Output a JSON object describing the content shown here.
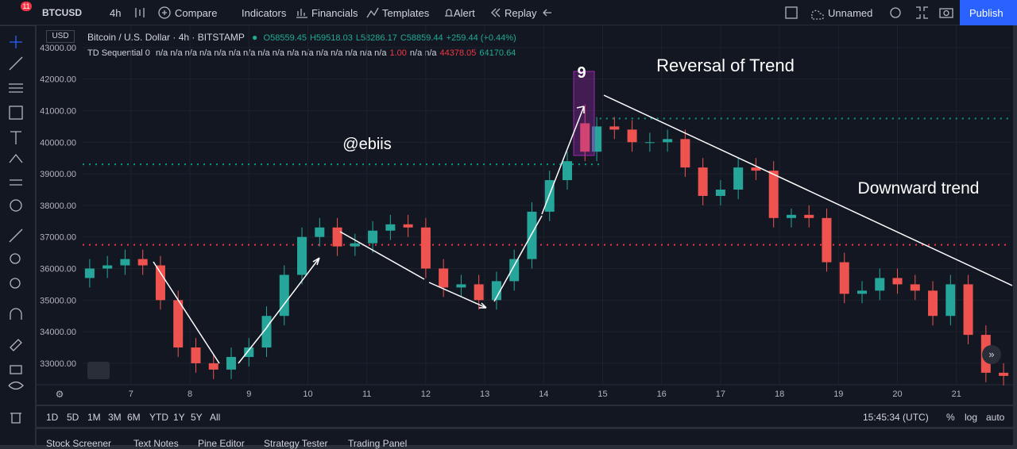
{
  "toolbar": {
    "badge": "11",
    "symbol": "BTCUSD",
    "interval": "4h",
    "items": [
      "Compare",
      "Indicators",
      "Financials",
      "Templates",
      "Alert",
      "Replay"
    ],
    "layout": "Unnamed",
    "publish": "Publish"
  },
  "legend": {
    "currency": "USD",
    "title": "Bitcoin / U.S. Dollar · 4h · BITSTAMP",
    "ohlc": [
      "O58559.45",
      "H59518.03",
      "L58286.17",
      "C58859.44",
      "+259.44 (+0.44%)"
    ],
    "indicator": "TD Sequential 0",
    "indicator_parts": [
      {
        "text": "n/a n/a n/a n/a n/a n/a n/a n/a n/a n/a n/a n/a n/a n/a n/a n/a",
        "color": "#d1d4dc"
      },
      {
        "text": "1.00",
        "color": "#f23645"
      },
      {
        "text": "n/a n/a",
        "color": "#d1d4dc"
      },
      {
        "text": "44378.05",
        "color": "#f23645"
      },
      {
        "text": "64170.64",
        "color": "#22ab94"
      }
    ]
  },
  "chart_data": {
    "type": "candlestick",
    "up_color": "#26a69a",
    "down_color": "#ef5350",
    "x": [
      6.3,
      6.6,
      6.9,
      7.2,
      7.5,
      7.8,
      8.1,
      8.4,
      8.7,
      9.0,
      9.3,
      9.6,
      9.9,
      10.2,
      10.5,
      10.8,
      11.1,
      11.4,
      11.7,
      12.0,
      12.3,
      12.6,
      12.9,
      13.2,
      13.5,
      13.8,
      14.1,
      14.4,
      14.7,
      14.9,
      15.2,
      15.5,
      15.8,
      16.1,
      16.4,
      16.7,
      17.0,
      17.3,
      17.6,
      17.9,
      18.2,
      18.5,
      18.8,
      19.1,
      19.4,
      19.7,
      20.0,
      20.3,
      20.6,
      20.9,
      21.2,
      21.5,
      21.8
    ],
    "open": [
      35700,
      36000,
      36100,
      36300,
      36100,
      35000,
      33500,
      33000,
      32800,
      33200,
      33500,
      34500,
      35800,
      37000,
      37300,
      36700,
      36800,
      37200,
      37400,
      37300,
      36000,
      35400,
      35500,
      35000,
      35600,
      36300,
      37800,
      38800,
      40600,
      39700,
      40500,
      40400,
      40000,
      40000,
      40100,
      39200,
      38300,
      38500,
      39200,
      39100,
      37600,
      37700,
      37600,
      36200,
      35200,
      35300,
      35700,
      35500,
      35300,
      34500,
      35500,
      33900,
      32700
    ],
    "high": [
      36300,
      36400,
      36600,
      36600,
      36400,
      35300,
      33800,
      33300,
      33500,
      33800,
      34800,
      36100,
      37300,
      37600,
      37600,
      37100,
      37500,
      37700,
      37700,
      37600,
      36300,
      35800,
      35800,
      35900,
      36600,
      38100,
      39100,
      39700,
      41200,
      40800,
      40800,
      40700,
      40300,
      40400,
      40400,
      39500,
      38800,
      39500,
      39500,
      39400,
      37900,
      38000,
      37900,
      36500,
      35600,
      36000,
      36000,
      35800,
      35600,
      35800,
      35800,
      34200,
      33000
    ],
    "low": [
      35400,
      35700,
      35800,
      35800,
      34700,
      33200,
      32700,
      32500,
      32500,
      32900,
      33200,
      34200,
      35500,
      36700,
      36400,
      36400,
      36500,
      36900,
      37000,
      35700,
      35100,
      35100,
      34700,
      34700,
      35300,
      36000,
      37500,
      38500,
      39400,
      39400,
      40100,
      39700,
      39700,
      39700,
      38900,
      38000,
      38000,
      38200,
      38800,
      37300,
      37300,
      37300,
      35900,
      34900,
      34900,
      35000,
      35200,
      35000,
      34200,
      34200,
      33600,
      32400,
      32300
    ],
    "close": [
      36000,
      36100,
      36300,
      36100,
      35000,
      33500,
      33000,
      32800,
      33200,
      33500,
      34500,
      35800,
      37000,
      37300,
      36700,
      36800,
      37200,
      37400,
      37300,
      36000,
      35400,
      35500,
      35000,
      35600,
      36300,
      37800,
      38800,
      39400,
      39700,
      40500,
      40400,
      40000,
      40000,
      40100,
      39200,
      38300,
      38500,
      39200,
      39100,
      37600,
      37700,
      37600,
      36200,
      35200,
      35300,
      35700,
      35500,
      35300,
      34500,
      35500,
      33900,
      32700,
      32600
    ],
    "levels": [
      {
        "value": 39300,
        "color": "#089981",
        "x": [
          6.18,
          14.95
        ]
      },
      {
        "value": 40750,
        "color": "#089981",
        "x": [
          14.95,
          21.92
        ]
      },
      {
        "value": 36750,
        "color": "#f23645",
        "x": [
          6.18,
          21.92
        ]
      }
    ],
    "xlim": [
      6.18,
      21.92
    ],
    "xticks": [
      7,
      8,
      9,
      10,
      11,
      12,
      13,
      14,
      15,
      16,
      17,
      18,
      19,
      20,
      21
    ],
    "ylim": [
      32320,
      43700
    ],
    "yticks": [
      {
        "value": 33000,
        "label": "33000.00"
      },
      {
        "value": 34000,
        "label": "34000.00"
      },
      {
        "value": 35000,
        "label": "35000.00"
      },
      {
        "value": 36000,
        "label": "36000.00"
      },
      {
        "value": 37000,
        "label": "37000.00"
      },
      {
        "value": 38000,
        "label": "38000.00"
      },
      {
        "value": 39000,
        "label": "39000.00"
      },
      {
        "value": 40000,
        "label": "40000.00"
      },
      {
        "value": 41000,
        "label": "41000.00"
      },
      {
        "value": 42000,
        "label": "42000.00"
      },
      {
        "value": 43000,
        "label": "43000.00"
      }
    ],
    "grid": true,
    "annotations": [
      "9",
      "Reversal of Trend",
      "@ebiis",
      "Downward trend"
    ]
  },
  "bottom": {
    "ranges": [
      "1D",
      "5D",
      "1M",
      "3M",
      "6M",
      "YTD",
      "1Y",
      "5Y",
      "All"
    ],
    "time": "15:45:34 (UTC)",
    "options": [
      "%",
      "log",
      "auto"
    ],
    "tabs": [
      "Stock Screener",
      "Text Notes",
      "Pine Editor",
      "Strategy Tester",
      "Trading Panel"
    ]
  }
}
